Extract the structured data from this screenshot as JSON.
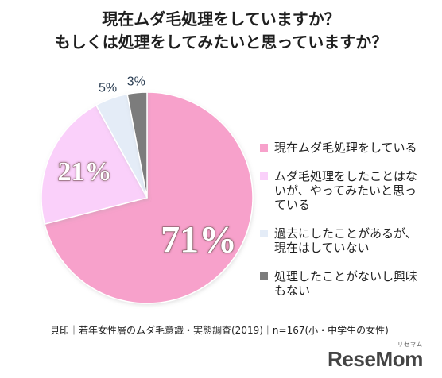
{
  "page": {
    "title_lines": [
      "現在ムダ毛処理をしていますか？",
      "もしくは処理をしてみたいと思っていますか？"
    ],
    "source_text": "貝印｜若年女性層のムダ毛意識・実態調査(2019)｜n=167(小・中学生の女性)",
    "brand": {
      "kana": "リセマム",
      "logo": "ReseMom"
    }
  },
  "chart_data": {
    "type": "pie",
    "title": "現在ムダ毛処理をしていますか？ もしくは処理をしてみたいと思っていますか？",
    "labels": [
      "現在ムダ毛処理をしている",
      "ムダ毛処理をしたことはないが、やってみたいと思っている",
      "過去にしたことがあるが、現在はしていない",
      "処理したことがないし興味もない"
    ],
    "values": [
      71,
      21,
      5,
      3
    ],
    "display_labels": [
      "71%",
      "21%",
      "5%",
      "3%"
    ],
    "colors": [
      "#F7A1CB",
      "#FAD0FA",
      "#E4ECF7",
      "#7C7C7C"
    ],
    "legend_position": "right",
    "n": 167
  }
}
